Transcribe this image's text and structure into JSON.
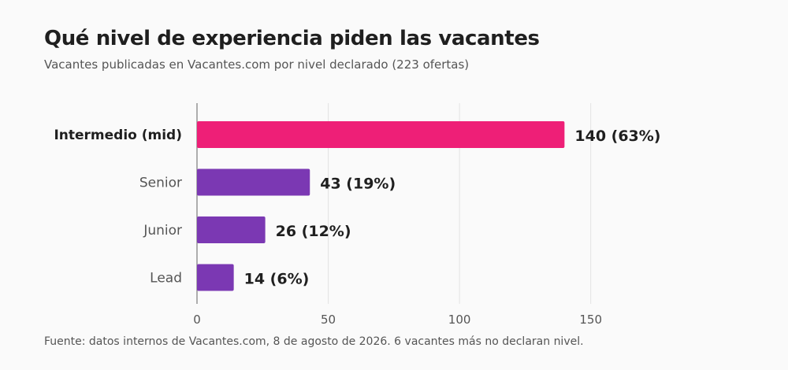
{
  "title": "Qué nivel de experiencia piden las vacantes",
  "subtitle": "Vacantes publicadas en Vacantes.com por nivel declarado (223 ofertas)",
  "footer": "Fuente: datos internos de Vacantes.com, 8 de agosto de 2026. 6 vacantes más no declaran nivel.",
  "colors": {
    "highlight": "#ee1f77",
    "default": "#7b38b3",
    "grid": "#e3e3e3",
    "axis": "#9a9a9a"
  },
  "chart_data": {
    "type": "bar",
    "orientation": "horizontal",
    "categories": [
      "Intermedio (mid)",
      "Senior",
      "Junior",
      "Lead"
    ],
    "values": [
      140,
      43,
      26,
      14
    ],
    "value_labels": [
      "140 (63%)",
      "43 (19%)",
      "26 (12%)",
      "14 (6%)"
    ],
    "highlight_index": 0,
    "xlim": [
      0,
      160
    ],
    "xticks": [
      0,
      50,
      100,
      150
    ],
    "grid": true
  }
}
